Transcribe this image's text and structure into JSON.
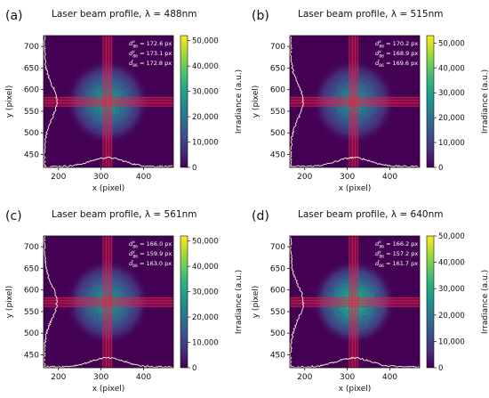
{
  "chart_data": [
    {
      "type": "heatmap",
      "panel_label": "(a)",
      "title": "Laser beam profile, λ = 488nm",
      "xlabel": "x (pixel)",
      "ylabel": "y (pixel)",
      "xlim": [
        165,
        470
      ],
      "ylim": [
        420,
        725
      ],
      "xticks": [
        200,
        300,
        400
      ],
      "yticks": [
        450,
        500,
        550,
        600,
        650,
        700
      ],
      "center": [
        315,
        572
      ],
      "annotations": [
        "d_86^x = 172.6 px",
        "d_86^y = 173.1 px",
        "d̄_86 = 172.8 px"
      ],
      "colorbar": {
        "label": "Irradiance (a.u.)",
        "ticks": [
          0,
          10000,
          20000,
          30000,
          40000,
          50000
        ],
        "tick_labels": [
          "0",
          "10,000",
          "20,000",
          "30,000",
          "40,000",
          "50,000"
        ],
        "max": 52000
      },
      "peak_irradiance": 28000
    },
    {
      "type": "heatmap",
      "panel_label": "(b)",
      "title": "Laser beam profile, λ = 515nm",
      "xlabel": "x (pixel)",
      "ylabel": "y (pixel)",
      "xlim": [
        165,
        470
      ],
      "ylim": [
        420,
        725
      ],
      "xticks": [
        200,
        300,
        400
      ],
      "yticks": [
        450,
        500,
        550,
        600,
        650,
        700
      ],
      "center": [
        315,
        572
      ],
      "annotations": [
        "d_86^x = 170.2 px",
        "d_86^y = 168.9 px",
        "d̄_86 = 169.6 px"
      ],
      "colorbar": {
        "label": "Irradiance (a.u.)",
        "ticks": [
          0,
          10000,
          20000,
          30000,
          40000,
          50000
        ],
        "tick_labels": [
          "0",
          "10,000",
          "20,000",
          "30,000",
          "40,000",
          "50,000"
        ],
        "max": 53000
      },
      "peak_irradiance": 26000
    },
    {
      "type": "heatmap",
      "panel_label": "(c)",
      "title": "Laser beam profile, λ = 561nm",
      "xlabel": "x (pixel)",
      "ylabel": "y (pixel)",
      "xlim": [
        165,
        470
      ],
      "ylim": [
        420,
        725
      ],
      "xticks": [
        200,
        300,
        400
      ],
      "yticks": [
        450,
        500,
        550,
        600,
        650,
        700
      ],
      "center": [
        315,
        572
      ],
      "annotations": [
        "d_86^x = 166.0 px",
        "d_86^y = 159.9 px",
        "d̄_86 = 163.0 px"
      ],
      "colorbar": {
        "label": "Irradiance (a.u.)",
        "ticks": [
          0,
          10000,
          20000,
          30000,
          40000,
          50000
        ],
        "tick_labels": [
          "0",
          "10,000",
          "20,000",
          "30,000",
          "40,000",
          "50,000"
        ],
        "max": 52000
      },
      "peak_irradiance": 27000
    },
    {
      "type": "heatmap",
      "panel_label": "(d)",
      "title": "Laser beam profile, λ = 640nm",
      "xlabel": "x (pixel)",
      "ylabel": "y (pixel)",
      "xlim": [
        165,
        470
      ],
      "ylim": [
        420,
        725
      ],
      "xticks": [
        200,
        300,
        400
      ],
      "yticks": [
        450,
        500,
        550,
        600,
        650,
        700
      ],
      "center": [
        315,
        572
      ],
      "annotations": [
        "d_86^x = 166.2 px",
        "d_86^y = 157.2 px",
        "d̄_86 = 161.7 px"
      ],
      "colorbar": {
        "label": "Irradiance (a.u.)",
        "ticks": [
          0,
          10000,
          20000,
          30000,
          40000,
          50000
        ],
        "tick_labels": [
          "0",
          "10,000",
          "20,000",
          "30,000",
          "40,000",
          "50,000"
        ],
        "max": 50000
      },
      "peak_irradiance": 32000
    }
  ],
  "colors": {
    "background": "#440154",
    "crosshair": "#e8204a",
    "profile": "#fff2e0"
  },
  "colormap": "viridis"
}
